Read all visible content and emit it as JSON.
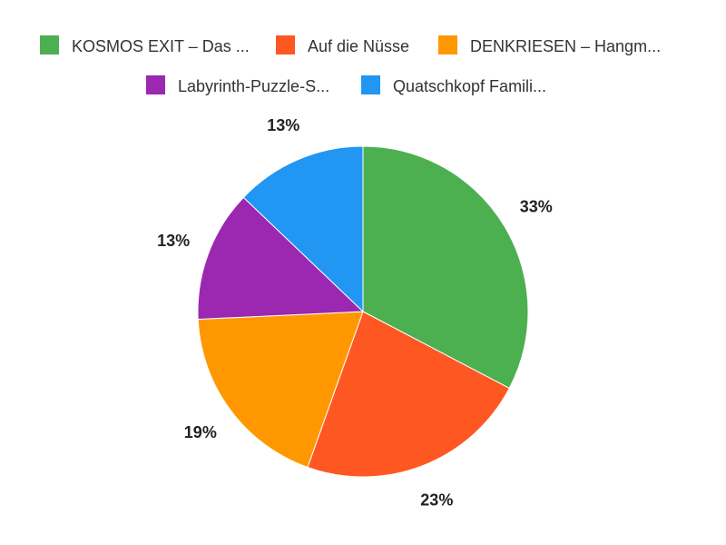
{
  "chart_data": {
    "type": "pie",
    "legend_position": "top",
    "slices": [
      {
        "label": "KOSMOS EXIT – Das ...",
        "value": 33,
        "value_label": "33%",
        "color": "#4caf50"
      },
      {
        "label": "Auf die Nüsse",
        "value": 23,
        "value_label": "23%",
        "color": "#ff5722"
      },
      {
        "label": "DENKRIESEN – Hangm...",
        "value": 19,
        "value_label": "19%",
        "color": "#ff9800"
      },
      {
        "label": "Labyrinth-Puzzle-S...",
        "value": 13,
        "value_label": "13%",
        "color": "#9c27b0"
      },
      {
        "label": "Quatschkopf Famili...",
        "value": 13,
        "value_label": "13%",
        "color": "#2196f3"
      }
    ]
  }
}
